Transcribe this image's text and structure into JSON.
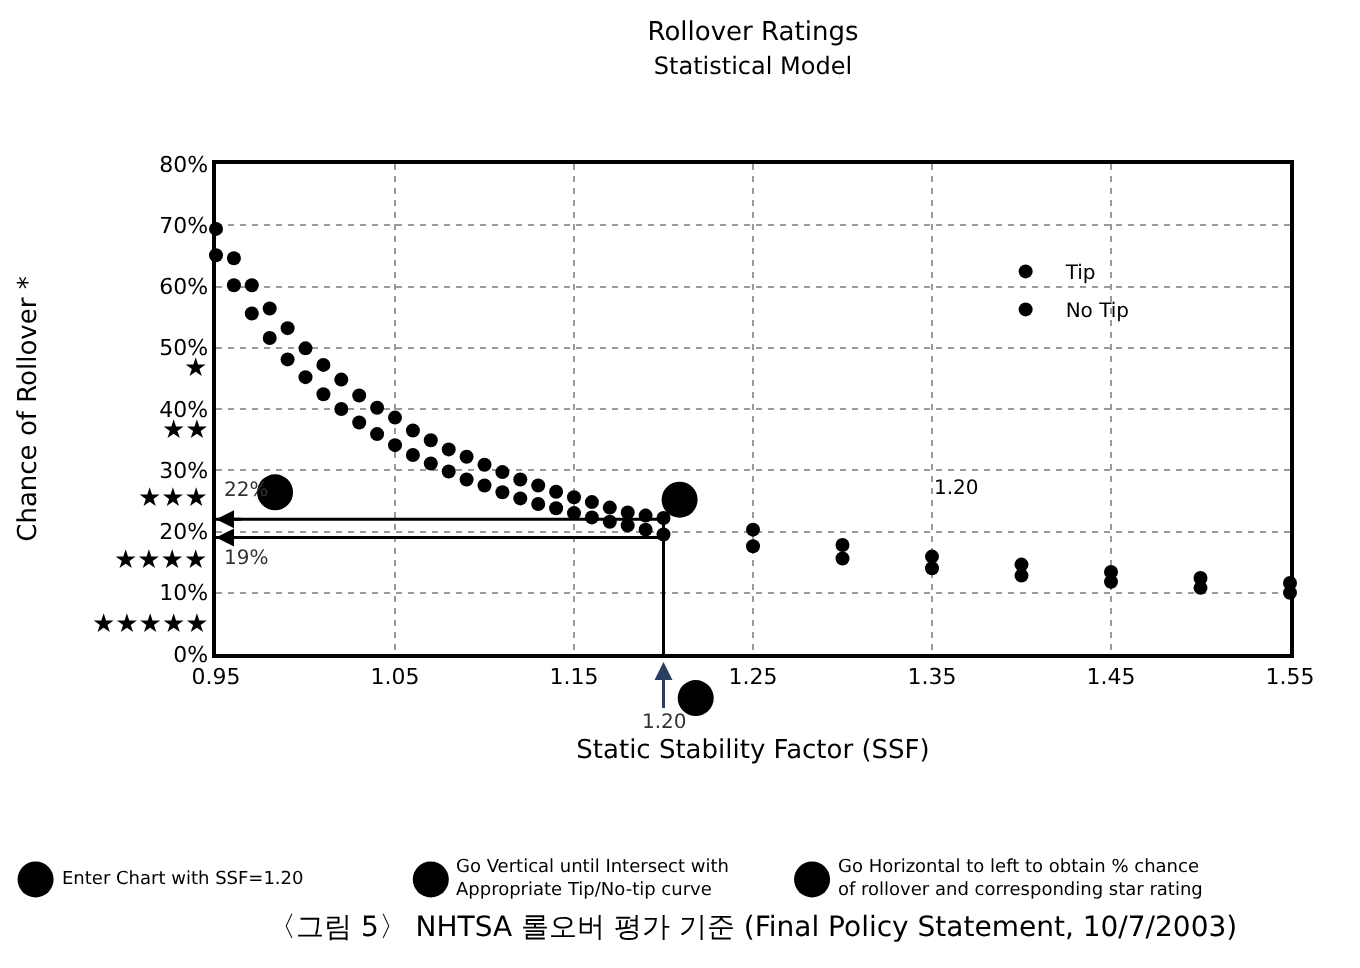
{
  "chart_data": {
    "type": "scatter",
    "title": "Rollover Ratings",
    "subtitle": "Statistical Model",
    "xlabel": "Static Stability Factor (SSF)",
    "ylabel": "Chance of Rollover *",
    "x": [
      0.95,
      0.96,
      0.97,
      0.98,
      0.99,
      1.0,
      1.01,
      1.02,
      1.03,
      1.04,
      1.05,
      1.06,
      1.07,
      1.08,
      1.09,
      1.1,
      1.11,
      1.12,
      1.13,
      1.14,
      1.15,
      1.16,
      1.17,
      1.18,
      1.19,
      1.2,
      1.25,
      1.3,
      1.35,
      1.4,
      1.45,
      1.5,
      1.55
    ],
    "series": [
      {
        "name": "Tip",
        "color": "#000000",
        "values": [
          69.4,
          64.6,
          60.2,
          56.4,
          53.2,
          49.9,
          47.2,
          44.8,
          42.2,
          40.2,
          38.6,
          36.5,
          34.9,
          33.4,
          32.2,
          30.9,
          29.7,
          28.5,
          27.5,
          26.5,
          25.6,
          24.8,
          23.9,
          23.1,
          22.6,
          22.2,
          20.3,
          17.8,
          15.9,
          14.6,
          13.4,
          12.4,
          11.6
        ]
      },
      {
        "name": "No Tip",
        "color": "#000000",
        "values": [
          65.1,
          60.2,
          55.6,
          51.6,
          48.1,
          45.2,
          42.4,
          40.0,
          37.8,
          35.9,
          34.1,
          32.5,
          31.1,
          29.8,
          28.5,
          27.5,
          26.4,
          25.4,
          24.5,
          23.8,
          23.0,
          22.3,
          21.6,
          21.0,
          20.3,
          19.5,
          17.6,
          15.6,
          14.0,
          12.8,
          11.8,
          10.8,
          10.0
        ]
      }
    ],
    "marker": "circle",
    "xlim": [
      0.95,
      1.55
    ],
    "xticks": [
      {
        "value": 0.95,
        "label": "0.95"
      },
      {
        "value": 1.05,
        "label": "1.05"
      },
      {
        "value": 1.15,
        "label": "1.15"
      },
      {
        "value": 1.25,
        "label": "1.25"
      },
      {
        "value": 1.35,
        "label": "1.35"
      },
      {
        "value": 1.45,
        "label": "1.45"
      },
      {
        "value": 1.55,
        "label": "1.55"
      }
    ],
    "ylim": [
      0,
      80
    ],
    "yticks": [
      {
        "value": 0,
        "label": "0%"
      },
      {
        "value": 10,
        "label": "10%"
      },
      {
        "value": 20,
        "label": "20%"
      },
      {
        "value": 30,
        "label": "30%"
      },
      {
        "value": 40,
        "label": "40%"
      },
      {
        "value": 50,
        "label": "50%"
      },
      {
        "value": 60,
        "label": "60%"
      },
      {
        "value": 70,
        "label": "70%"
      },
      {
        "value": 80,
        "label": "80%"
      }
    ],
    "grid": true,
    "legend": "top right",
    "ref_lines": [
      {
        "axis": "x",
        "value": 1.2,
        "label": "1.20"
      },
      {
        "axis": "y",
        "value": 22,
        "label": "22%"
      },
      {
        "axis": "y",
        "value": 19,
        "label": "19%"
      }
    ],
    "annotations": [
      "★",
      "★★",
      "★★★",
      "★★★★",
      "★★★★★",
      "1.20",
      "Enter Chart with SSF=1.20",
      "Go Vertical until Intersect with\nAppropriate Tip/No-tip curve",
      "Go Horizontal to left to obtain % chance\nof rollover and corresponding star rating",
      "〈그림 5〉 NHTSA 롤오버 평가 기준 (Final Policy Statement, 10/7/2003)"
    ]
  }
}
